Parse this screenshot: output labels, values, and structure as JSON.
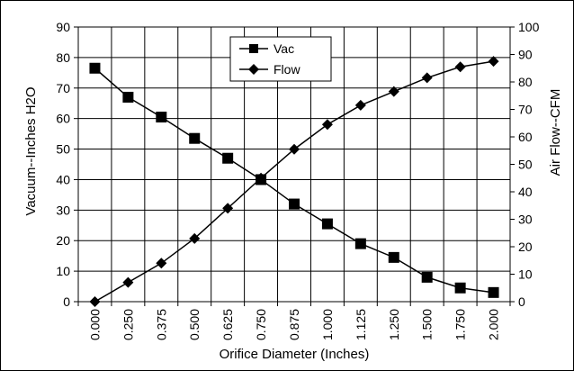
{
  "chart_data": {
    "type": "line",
    "title": "",
    "xlabel": "Orifice Diameter (Inches)",
    "ylabel_left": "Vacuum--Inches H2O",
    "ylabel_right": "Air Flow--CFM",
    "categories": [
      "0.000",
      "0.250",
      "0.375",
      "0.500",
      "0.625",
      "0.750",
      "0.875",
      "1.000",
      "1.125",
      "1.250",
      "1.500",
      "1.750",
      "2.000"
    ],
    "ylim_left": [
      0,
      90
    ],
    "yticks_left": [
      0,
      10,
      20,
      30,
      40,
      50,
      60,
      70,
      80,
      90
    ],
    "ylim_right": [
      0,
      100
    ],
    "yticks_right": [
      0,
      10,
      20,
      30,
      40,
      50,
      60,
      70,
      80,
      90,
      100
    ],
    "grid": true,
    "legend_position": "top-center",
    "series": [
      {
        "name": "Vac",
        "axis": "left",
        "marker": "square",
        "values": [
          76.5,
          67,
          60.5,
          53.5,
          47,
          40,
          32,
          25.5,
          19,
          14.5,
          8,
          4.5,
          3
        ]
      },
      {
        "name": "Flow",
        "axis": "right",
        "marker": "diamond",
        "values": [
          0,
          7,
          14,
          23,
          34,
          45,
          55.5,
          64.5,
          71.5,
          76.5,
          81.5,
          85.5,
          87.5
        ]
      }
    ],
    "colors": {
      "line": "#000000",
      "grid": "#000000",
      "background": "#ffffff"
    }
  }
}
